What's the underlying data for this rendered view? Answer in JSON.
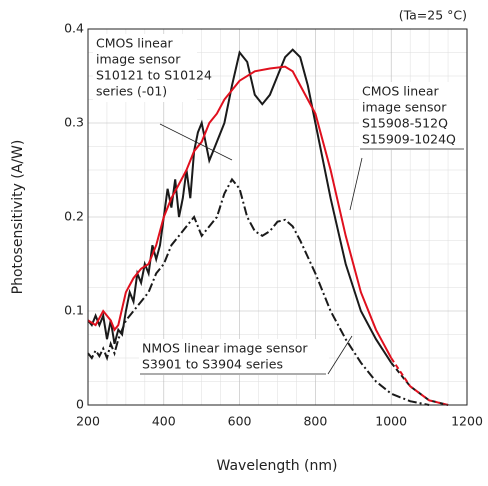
{
  "chart_data": {
    "type": "line",
    "xlabel": "Wavelength (nm)",
    "ylabel": "Photosensitivity (A/W)",
    "note": "(Ta=25 °C)",
    "xlim": [
      200,
      1200
    ],
    "xticks": [
      200,
      400,
      600,
      800,
      1000,
      1200
    ],
    "ylim": [
      0,
      0.4
    ],
    "yticks": [
      0,
      0.1,
      0.2,
      0.3,
      0.4
    ],
    "xminor": [
      250,
      300,
      350,
      450,
      500,
      550,
      650,
      700,
      750,
      850,
      900,
      950,
      1050,
      1100,
      1150
    ],
    "yminor": [
      0.025,
      0.05,
      0.075,
      0.125,
      0.15,
      0.175,
      0.225,
      0.25,
      0.275,
      0.325,
      0.35,
      0.375
    ],
    "grid": true,
    "series": [
      {
        "color": "#1a1a1a",
        "style": "solid",
        "dash_from": 1000,
        "x": [
          200,
          210,
          220,
          230,
          240,
          250,
          260,
          270,
          280,
          290,
          300,
          310,
          320,
          330,
          340,
          350,
          360,
          370,
          380,
          390,
          400,
          410,
          420,
          430,
          440,
          450,
          460,
          470,
          480,
          490,
          500,
          510,
          520,
          530,
          540,
          560,
          580,
          600,
          620,
          640,
          660,
          680,
          700,
          720,
          740,
          760,
          780,
          800,
          840,
          880,
          920,
          960,
          1000,
          1050,
          1100,
          1150
        ],
        "values": [
          0.09,
          0.085,
          0.095,
          0.085,
          0.095,
          0.07,
          0.09,
          0.065,
          0.08,
          0.075,
          0.1,
          0.12,
          0.11,
          0.14,
          0.13,
          0.15,
          0.14,
          0.17,
          0.155,
          0.17,
          0.2,
          0.23,
          0.21,
          0.24,
          0.2,
          0.22,
          0.25,
          0.22,
          0.27,
          0.29,
          0.3,
          0.28,
          0.26,
          0.27,
          0.28,
          0.3,
          0.34,
          0.375,
          0.365,
          0.33,
          0.32,
          0.33,
          0.35,
          0.37,
          0.378,
          0.37,
          0.34,
          0.3,
          0.22,
          0.15,
          0.1,
          0.07,
          0.045,
          0.02,
          0.005,
          0
        ]
      },
      {
        "color": "#e0101e",
        "style": "solid",
        "dash_from": 1000,
        "x": [
          200,
          220,
          240,
          260,
          270,
          280,
          300,
          320,
          340,
          360,
          380,
          400,
          420,
          440,
          460,
          480,
          500,
          520,
          540,
          560,
          580,
          600,
          640,
          680,
          720,
          740,
          760,
          800,
          840,
          880,
          920,
          960,
          1000,
          1050,
          1100,
          1150
        ],
        "values": [
          0.09,
          0.085,
          0.1,
          0.09,
          0.08,
          0.085,
          0.12,
          0.135,
          0.145,
          0.15,
          0.17,
          0.2,
          0.22,
          0.235,
          0.25,
          0.27,
          0.28,
          0.3,
          0.31,
          0.325,
          0.335,
          0.345,
          0.355,
          0.358,
          0.36,
          0.355,
          0.34,
          0.31,
          0.25,
          0.18,
          0.12,
          0.08,
          0.05,
          0.02,
          0.005,
          0
        ]
      },
      {
        "color": "#1a1a1a",
        "style": "dashdot",
        "x": [
          200,
          210,
          220,
          230,
          240,
          250,
          260,
          270,
          280,
          300,
          320,
          340,
          360,
          380,
          400,
          420,
          440,
          460,
          480,
          500,
          520,
          540,
          560,
          580,
          600,
          620,
          640,
          660,
          680,
          700,
          720,
          740,
          760,
          800,
          840,
          880,
          920,
          960,
          1000,
          1050,
          1100
        ],
        "values": [
          0.055,
          0.05,
          0.058,
          0.052,
          0.06,
          0.05,
          0.065,
          0.055,
          0.07,
          0.09,
          0.1,
          0.11,
          0.12,
          0.14,
          0.15,
          0.17,
          0.18,
          0.19,
          0.2,
          0.18,
          0.19,
          0.2,
          0.225,
          0.24,
          0.23,
          0.2,
          0.185,
          0.18,
          0.185,
          0.195,
          0.197,
          0.19,
          0.175,
          0.14,
          0.1,
          0.07,
          0.045,
          0.025,
          0.012,
          0.004,
          0
        ]
      }
    ],
    "annotations": [
      [
        "CMOS linear",
        "image sensor",
        "S10121 to S10124",
        "series (-01)"
      ],
      [
        "CMOS linear",
        "image sensor",
        "S15908-512Q",
        "S15909-1024Q"
      ],
      [
        "NMOS linear image sensor",
        "S3901 to S3904 series"
      ]
    ]
  }
}
